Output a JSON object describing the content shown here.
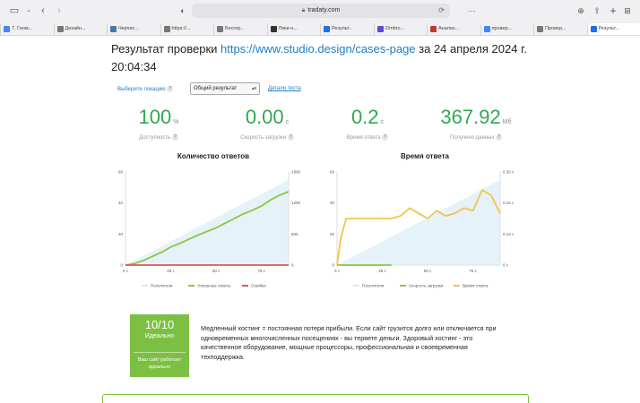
{
  "browser": {
    "address": "tradaty.com",
    "tabs": [
      {
        "label": "7. Генм...",
        "color": "#4285f4"
      },
      {
        "label": "Дизайн...",
        "color": "#777777"
      },
      {
        "label": "Черчис...",
        "color": "#4a76a8"
      },
      {
        "label": "https://...",
        "color": "#777777"
      },
      {
        "label": "Бесгер...",
        "color": "#777777"
      },
      {
        "label": "Ляки-н...",
        "color": "#333333"
      },
      {
        "label": "Результ...",
        "color": "#1a73e8"
      },
      {
        "label": "Zimbro...",
        "color": "#5a4bd1"
      },
      {
        "label": "Анализ...",
        "color": "#c0392b"
      },
      {
        "label": "провер...",
        "color": "#4285f4"
      },
      {
        "label": "Провер...",
        "color": "#777777"
      },
      {
        "label": "Результ...",
        "color": "#1a73e8"
      }
    ]
  },
  "header": {
    "prefix": "Результат проверки ",
    "url": "https://www.studio.design/cases-page",
    "suffix": " за 24 апреля 2024 г. 20:04:34"
  },
  "controls": {
    "location_label": "Выберите локацию",
    "select_value": "Общий результат",
    "details_link": "Детали теста"
  },
  "metrics": [
    {
      "value": "100",
      "unit": "%",
      "label": "Доступность",
      "color": "#2fa84f"
    },
    {
      "value": "0.00",
      "unit": "с",
      "label": "Скорость загрузки",
      "color": "#2fa84f"
    },
    {
      "value": "0.2",
      "unit": "с",
      "label": "Время ответа",
      "color": "#2fa84f"
    },
    {
      "value": "367.92",
      "unit": "Мб",
      "label": "Получено данных",
      "color": "#2fa84f"
    }
  ],
  "chart_data": [
    {
      "type": "line",
      "title": "Количество ответов",
      "x_ticks": [
        "0 с",
        "25 с",
        "50 с",
        "75 с"
      ],
      "y_left_ticks": [
        0,
        20,
        40,
        60
      ],
      "y_right_ticks": [
        0,
        600,
        1200,
        1800
      ],
      "series": [
        {
          "name": "Посетители",
          "color": "#d6eaf5",
          "x": [
            0,
            90
          ],
          "y": [
            0,
            55
          ],
          "axis": "left"
        },
        {
          "name": "Успешные ответы",
          "color": "#8cc63f",
          "x": [
            0,
            5,
            10,
            15,
            20,
            25,
            30,
            35,
            40,
            45,
            50,
            55,
            60,
            65,
            70,
            75,
            80,
            85,
            90
          ],
          "y": [
            0,
            30,
            90,
            170,
            250,
            350,
            420,
            500,
            580,
            650,
            720,
            810,
            900,
            990,
            1060,
            1140,
            1260,
            1350,
            1420
          ],
          "axis": "right"
        },
        {
          "name": "Ошибки",
          "color": "#e05555",
          "x": [
            0,
            90
          ],
          "y": [
            0,
            0
          ],
          "axis": "right"
        }
      ]
    },
    {
      "type": "line",
      "title": "Время ответа",
      "x_ticks": [
        "0 с",
        "25 с",
        "50 с",
        "75 с"
      ],
      "y_left_ticks": [
        0,
        20,
        40,
        60
      ],
      "y_right_ticks": [
        "0 с",
        "0.12 с",
        "0.24 с",
        "0.36 с"
      ],
      "series": [
        {
          "name": "Посетители",
          "color": "#d6eaf5",
          "x": [
            0,
            90
          ],
          "y": [
            0,
            55
          ],
          "axis": "left"
        },
        {
          "name": "Скорость загрузки",
          "color": "#8cc63f",
          "x": [
            0,
            30
          ],
          "y": [
            0,
            0
          ],
          "axis": "right"
        },
        {
          "name": "Время ответа",
          "color": "#f0c54a",
          "x": [
            0,
            2,
            5,
            10,
            15,
            20,
            25,
            30,
            35,
            40,
            45,
            50,
            55,
            60,
            65,
            70,
            75,
            80,
            85,
            90
          ],
          "y": [
            0,
            0.1,
            0.18,
            0.18,
            0.18,
            0.18,
            0.18,
            0.18,
            0.19,
            0.22,
            0.2,
            0.18,
            0.21,
            0.19,
            0.2,
            0.22,
            0.21,
            0.29,
            0.27,
            0.2
          ],
          "axis": "right"
        }
      ]
    }
  ],
  "score": {
    "value": "10/10",
    "label": "Идеально",
    "sub": "Ваш сайт работает идеально"
  },
  "description": "Медленный хостинг = постоянная потеря прибыли. Если сайт грузится долго или отключается при одновременных многочисленных посещениях - вы теряете деньги. Здоровый хостинг - это качественное оборудование, мощные процессоры, профессиональная и своевременная техподдержка."
}
